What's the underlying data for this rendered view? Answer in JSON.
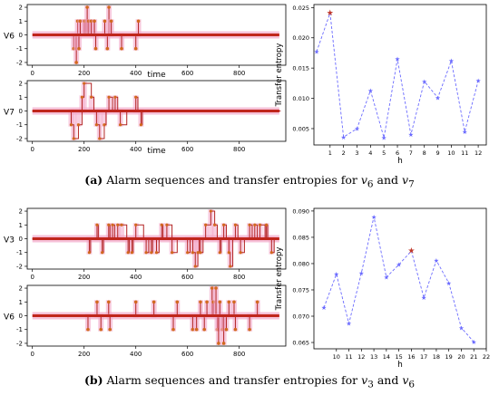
{
  "captions": {
    "a": {
      "tag": "(a)",
      "text": "Alarm sequences and transfer entropies for",
      "var1": "v",
      "sub1": "6",
      "and": "and",
      "var2": "v",
      "sub2": "7"
    },
    "b": {
      "tag": "(b)",
      "text": "Alarm sequences and transfer entropies for",
      "var1": "v",
      "sub1": "3",
      "and": "and",
      "var2": "v",
      "sub2": "6"
    }
  },
  "colors": {
    "stem": "#b22222",
    "baseline": "#c0261c",
    "band": "#f2a6c8",
    "marker": "#d2691e",
    "te_line": "#6a6aff",
    "te_highlight": "#c0392b",
    "axes": "#000000"
  },
  "chart_data": [
    {
      "id": "a_v6",
      "type": "line",
      "subplot": "(a) top-left",
      "ylabel": "V6",
      "xlabel": "time",
      "xlim": [
        -20,
        980
      ],
      "ylim": [
        -2.2,
        2.2
      ],
      "xticks": [
        0,
        200,
        400,
        600,
        800
      ],
      "yticks": [
        -2,
        -1,
        0,
        1,
        2
      ],
      "events": [
        [
          160,
          -1
        ],
        [
          170,
          -2
        ],
        [
          175,
          1
        ],
        [
          180,
          -1
        ],
        [
          185,
          1
        ],
        [
          200,
          1
        ],
        [
          205,
          1
        ],
        [
          212,
          2
        ],
        [
          218,
          1
        ],
        [
          228,
          1
        ],
        [
          240,
          1
        ],
        [
          245,
          -1
        ],
        [
          280,
          1
        ],
        [
          290,
          -1
        ],
        [
          296,
          2
        ],
        [
          305,
          1
        ],
        [
          345,
          -1
        ],
        [
          400,
          -1
        ],
        [
          410,
          1
        ]
      ]
    },
    {
      "id": "a_v7",
      "type": "line",
      "subplot": "(a) bottom-left",
      "ylabel": "V7",
      "xlabel": "time",
      "xlim": [
        -20,
        980
      ],
      "ylim": [
        -2.2,
        2.2
      ],
      "xticks": [
        0,
        200,
        400,
        600,
        800
      ],
      "yticks": [
        -2,
        -1,
        0,
        1,
        2
      ],
      "steps": [
        [
          0,
          0
        ],
        [
          145,
          0
        ],
        [
          150,
          -1
        ],
        [
          160,
          -2
        ],
        [
          178,
          -1
        ],
        [
          192,
          1
        ],
        [
          200,
          2
        ],
        [
          228,
          1
        ],
        [
          238,
          0
        ],
        [
          248,
          -1
        ],
        [
          260,
          -2
        ],
        [
          278,
          -1
        ],
        [
          285,
          0
        ],
        [
          296,
          1
        ],
        [
          310,
          0
        ],
        [
          320,
          1
        ],
        [
          330,
          0
        ],
        [
          340,
          -1
        ],
        [
          365,
          0
        ],
        [
          400,
          1
        ],
        [
          408,
          0
        ],
        [
          420,
          -1
        ],
        [
          425,
          0
        ],
        [
          960,
          0
        ]
      ]
    },
    {
      "id": "a_te",
      "type": "line",
      "subplot": "(a) right",
      "xlabel": "h",
      "ylabel": "Transfer entropy",
      "xlim": [
        -0.2,
        12.6
      ],
      "ylim": [
        0.0023,
        0.0255
      ],
      "xticks": [
        1,
        2,
        3,
        4,
        5,
        6,
        7,
        8,
        9,
        10,
        11,
        12
      ],
      "yticks": [
        0.005,
        0.01,
        0.015,
        0.02,
        0.025
      ],
      "ytick_labels": [
        "0.005",
        "0.010",
        "0.015",
        "0.020",
        "0.025"
      ],
      "x": [
        0,
        1,
        2,
        3,
        4,
        5,
        6,
        7,
        8,
        9,
        10,
        11,
        12
      ],
      "y": [
        0.0177,
        0.0241,
        0.0036,
        0.005,
        0.0113,
        0.0035,
        0.0165,
        0.004,
        0.0128,
        0.0101,
        0.0162,
        0.0045,
        0.0129
      ],
      "highlight_index": 1
    },
    {
      "id": "b_v3",
      "type": "line",
      "subplot": "(b) top-left",
      "ylabel": "V3",
      "xlabel": "",
      "xlim": [
        -20,
        980
      ],
      "ylim": [
        -2.2,
        2.2
      ],
      "xticks": [
        0,
        200,
        400,
        600,
        800
      ],
      "yticks": [
        -2,
        -1,
        0,
        1,
        2
      ],
      "steps": [
        [
          0,
          0
        ],
        [
          215,
          0
        ],
        [
          220,
          -1
        ],
        [
          225,
          0
        ],
        [
          250,
          1
        ],
        [
          255,
          0
        ],
        [
          270,
          -1
        ],
        [
          275,
          0
        ],
        [
          295,
          1
        ],
        [
          300,
          0
        ],
        [
          310,
          1
        ],
        [
          318,
          0
        ],
        [
          330,
          1
        ],
        [
          345,
          1
        ],
        [
          365,
          0
        ],
        [
          370,
          -1
        ],
        [
          375,
          0
        ],
        [
          385,
          -1
        ],
        [
          390,
          0
        ],
        [
          400,
          1
        ],
        [
          430,
          0
        ],
        [
          440,
          -1
        ],
        [
          450,
          0
        ],
        [
          460,
          -1
        ],
        [
          465,
          0
        ],
        [
          480,
          -1
        ],
        [
          490,
          0
        ],
        [
          500,
          1
        ],
        [
          505,
          0
        ],
        [
          520,
          1
        ],
        [
          540,
          -1
        ],
        [
          560,
          0
        ],
        [
          580,
          0
        ],
        [
          600,
          -1
        ],
        [
          610,
          0
        ],
        [
          620,
          -1
        ],
        [
          630,
          -2
        ],
        [
          640,
          -1
        ],
        [
          645,
          0
        ],
        [
          650,
          -1
        ],
        [
          660,
          0
        ],
        [
          670,
          1
        ],
        [
          690,
          2
        ],
        [
          705,
          1
        ],
        [
          715,
          0
        ],
        [
          725,
          -1
        ],
        [
          730,
          0
        ],
        [
          740,
          1
        ],
        [
          750,
          0
        ],
        [
          760,
          -1
        ],
        [
          765,
          -2
        ],
        [
          775,
          0
        ],
        [
          785,
          1
        ],
        [
          795,
          0
        ],
        [
          805,
          -1
        ],
        [
          820,
          0
        ],
        [
          840,
          1
        ],
        [
          850,
          0
        ],
        [
          860,
          1
        ],
        [
          870,
          0
        ],
        [
          880,
          1
        ],
        [
          900,
          0
        ],
        [
          905,
          1
        ],
        [
          910,
          0
        ],
        [
          925,
          -1
        ],
        [
          935,
          0
        ],
        [
          945,
          0
        ]
      ]
    },
    {
      "id": "b_v6",
      "type": "line",
      "subplot": "(b) bottom-left",
      "ylabel": "V6",
      "xlabel": "",
      "xlim": [
        -20,
        980
      ],
      "ylim": [
        -2.2,
        2.2
      ],
      "xticks": [
        0,
        200,
        400,
        600,
        800
      ],
      "yticks": [
        -2,
        -1,
        0,
        1,
        2
      ],
      "events": [
        [
          215,
          -1
        ],
        [
          250,
          1
        ],
        [
          265,
          -1
        ],
        [
          295,
          1
        ],
        [
          300,
          -1
        ],
        [
          400,
          1
        ],
        [
          470,
          1
        ],
        [
          545,
          -1
        ],
        [
          560,
          1
        ],
        [
          620,
          -1
        ],
        [
          635,
          -1
        ],
        [
          650,
          1
        ],
        [
          665,
          -1
        ],
        [
          675,
          1
        ],
        [
          695,
          2
        ],
        [
          700,
          1
        ],
        [
          710,
          2
        ],
        [
          715,
          -1
        ],
        [
          720,
          -2
        ],
        [
          725,
          1
        ],
        [
          735,
          -1
        ],
        [
          740,
          -2
        ],
        [
          750,
          -1
        ],
        [
          760,
          1
        ],
        [
          780,
          1
        ],
        [
          785,
          -1
        ],
        [
          840,
          -1
        ],
        [
          870,
          1
        ]
      ]
    },
    {
      "id": "b_te",
      "type": "line",
      "subplot": "(b) right",
      "xlabel": "h",
      "ylabel": "Transfer entropy",
      "xlim": [
        8.2,
        22.0
      ],
      "ylim": [
        0.0638,
        0.0905
      ],
      "xticks": [
        10,
        11,
        12,
        13,
        14,
        15,
        16,
        17,
        18,
        19,
        20,
        21,
        22
      ],
      "yticks": [
        0.065,
        0.07,
        0.075,
        0.08,
        0.085,
        0.09
      ],
      "ytick_labels": [
        "0.065",
        "0.070",
        "0.075",
        "0.080",
        "0.085",
        "0.090"
      ],
      "x": [
        9,
        10,
        11,
        12,
        13,
        14,
        15,
        16,
        17,
        18,
        19,
        20,
        21
      ],
      "y": [
        0.0716,
        0.078,
        0.0686,
        0.0782,
        0.0889,
        0.0774,
        0.0798,
        0.0824,
        0.0735,
        0.0806,
        0.0763,
        0.0678,
        0.0651
      ],
      "highlight_index": 7
    }
  ]
}
